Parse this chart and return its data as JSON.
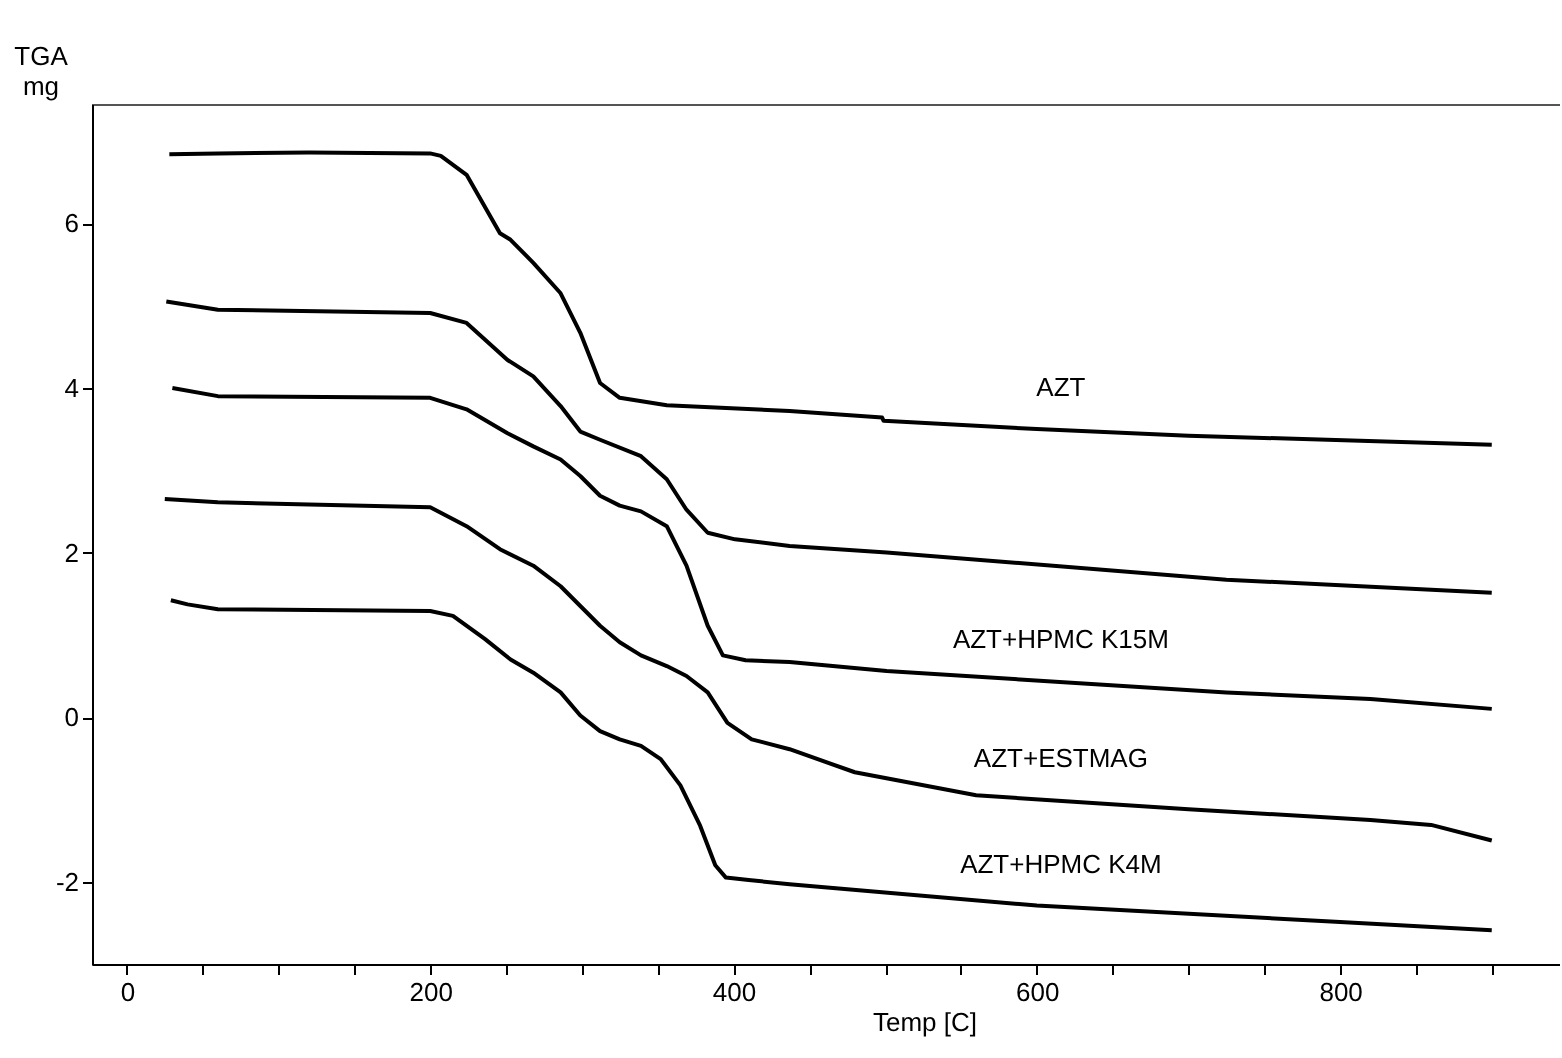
{
  "chart_data": {
    "type": "line",
    "xlabel": "Temp [C]",
    "ylabel": "TGA\nmg",
    "xlim": [
      -23,
      945
    ],
    "ylim": [
      -3,
      7.45
    ],
    "xticks": [
      0,
      {
        "value": 50,
        "label": null
      },
      {
        "value": 100,
        "label": null
      },
      {
        "value": 150,
        "label": null
      },
      200,
      {
        "value": 250,
        "label": null
      },
      {
        "value": 300,
        "label": null
      },
      {
        "value": 350,
        "label": null
      },
      400,
      {
        "value": 450,
        "label": null
      },
      {
        "value": 500,
        "label": null
      },
      {
        "value": 550,
        "label": null
      },
      600,
      {
        "value": 650,
        "label": null
      },
      {
        "value": 700,
        "label": null
      },
      {
        "value": 750,
        "label": null
      },
      800,
      {
        "value": 850,
        "label": null
      },
      {
        "value": 900,
        "label": null
      }
    ],
    "yticks": [
      -2,
      0,
      2,
      4,
      6
    ],
    "grid": false,
    "legend": false,
    "marker": "none",
    "line_style": "solid",
    "series": [
      {
        "name": "AZT",
        "color": "#000000",
        "x": [
          28,
          60,
          120,
          200,
          207,
          224,
          246,
          253,
          268,
          286,
          299,
          312,
          325,
          356,
          437,
          498,
          499,
          600,
          700,
          900
        ],
        "values": [
          6.84,
          6.85,
          6.86,
          6.85,
          6.82,
          6.59,
          5.88,
          5.8,
          5.52,
          5.15,
          4.67,
          4.06,
          3.88,
          3.79,
          3.72,
          3.64,
          3.6,
          3.5,
          3.42,
          3.31
        ]
      },
      {
        "color": "#000000",
        "x": [
          26,
          60,
          200,
          224,
          251,
          268,
          286,
          299,
          312,
          339,
          356,
          369,
          383,
          401,
          437,
          501,
          725,
          900
        ],
        "values": [
          5.05,
          4.95,
          4.91,
          4.79,
          4.34,
          4.14,
          3.78,
          3.47,
          3.37,
          3.17,
          2.89,
          2.52,
          2.24,
          2.16,
          2.08,
          2.0,
          1.67,
          1.51
        ]
      },
      {
        "name": "AZT+HPMC K15M",
        "color": "#000000",
        "x": [
          30,
          60,
          200,
          224,
          251,
          268,
          286,
          299,
          312,
          325,
          339,
          356,
          369,
          383,
          393,
          408,
          437,
          501,
          725,
          820,
          900
        ],
        "values": [
          4.0,
          3.9,
          3.88,
          3.74,
          3.45,
          3.29,
          3.13,
          2.93,
          2.69,
          2.57,
          2.5,
          2.32,
          1.84,
          1.11,
          0.75,
          0.69,
          0.67,
          0.56,
          0.3,
          0.22,
          0.1
        ]
      },
      {
        "name": "AZT+ESTMAG",
        "color": "#000000",
        "x": [
          25,
          60,
          200,
          224,
          246,
          268,
          286,
          299,
          312,
          325,
          339,
          356,
          369,
          383,
          396,
          412,
          437,
          480,
          560,
          700,
          820,
          860,
          900
        ],
        "values": [
          2.65,
          2.61,
          2.55,
          2.32,
          2.04,
          1.84,
          1.59,
          1.35,
          1.11,
          0.91,
          0.75,
          0.62,
          0.5,
          0.3,
          -0.07,
          -0.27,
          -0.39,
          -0.67,
          -0.95,
          -1.12,
          -1.25,
          -1.31,
          -1.5
        ]
      },
      {
        "name": "AZT+HPMC K4M",
        "color": "#000000",
        "x": [
          29,
          40,
          60,
          200,
          215,
          236,
          253,
          268,
          286,
          299,
          312,
          325,
          339,
          352,
          365,
          378,
          388,
          395,
          410,
          437,
          600,
          800,
          900
        ],
        "values": [
          1.42,
          1.37,
          1.31,
          1.29,
          1.23,
          0.95,
          0.7,
          0.54,
          0.3,
          0.02,
          -0.17,
          -0.27,
          -0.35,
          -0.51,
          -0.83,
          -1.32,
          -1.8,
          -1.95,
          -1.98,
          -2.03,
          -2.29,
          -2.49,
          -2.59
        ]
      }
    ]
  }
}
